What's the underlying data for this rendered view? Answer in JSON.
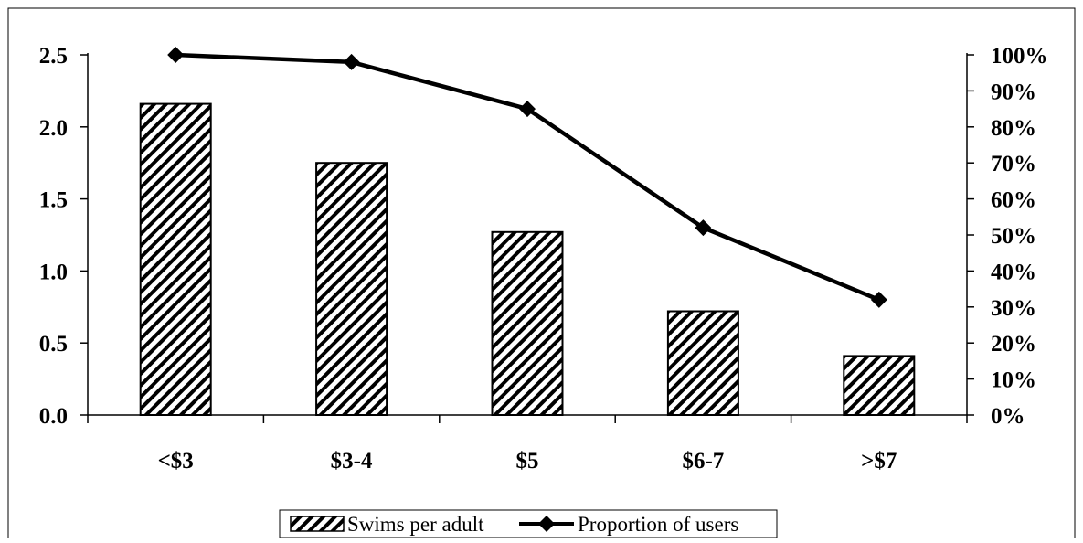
{
  "chart_data": {
    "type": "bar",
    "categories": [
      "<$3",
      "$3-4",
      "$5",
      "$6-7",
      ">$7"
    ],
    "series": [
      {
        "name": "Swims per adult",
        "type": "bar",
        "axis": "left",
        "pattern": "diagonal-hatch",
        "values": [
          2.16,
          1.75,
          1.27,
          0.72,
          0.41
        ]
      },
      {
        "name": "Proportion of users",
        "type": "line",
        "axis": "right",
        "marker": "diamond",
        "values": [
          1.0,
          0.98,
          0.85,
          0.52,
          0.32
        ]
      }
    ],
    "y_left": {
      "min": 0,
      "max": 2.5,
      "ticks": [
        0.0,
        0.5,
        1.0,
        1.5,
        2.0,
        2.5
      ],
      "tick_labels": [
        "0.0",
        "0.5",
        "1.0",
        "1.5",
        "2.0",
        "2.5"
      ]
    },
    "y_right": {
      "min": 0,
      "max": 1,
      "ticks": [
        0,
        0.1,
        0.2,
        0.3,
        0.4,
        0.5,
        0.6,
        0.7,
        0.8,
        0.9,
        1.0
      ],
      "tick_labels": [
        "0%",
        "10%",
        "20%",
        "30%",
        "40%",
        "50%",
        "60%",
        "70%",
        "80%",
        "90%",
        "100%"
      ]
    },
    "grid": false,
    "legend": {
      "position": "bottom",
      "entries": [
        "Swims per adult",
        "Proportion of users"
      ]
    },
    "colors": {
      "bar_hatch": "#000000",
      "bar_fill": "#ffffff",
      "line": "#000000"
    }
  }
}
